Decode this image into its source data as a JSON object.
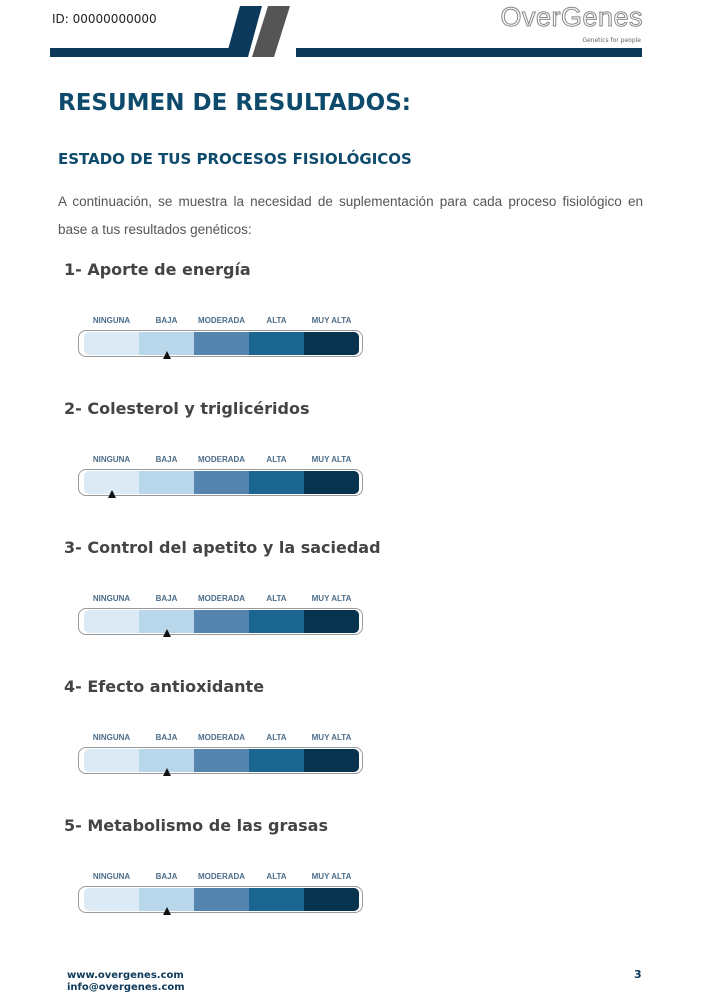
{
  "header": {
    "id": "ID: 00000000000",
    "logo": "OverGenes",
    "tagline": "Genetics for people"
  },
  "title": "RESUMEN DE RESULTADOS:",
  "subtitle": "ESTADO DE TUS PROCESOS FISIOLÓGICOS",
  "intro": "A continuación, se muestra la necesidad de suplementación para cada proceso fisiológico en base a tus resultados genéticos:",
  "scale": [
    "NINGUNA",
    "BAJA",
    "MODERADA",
    "ALTA",
    "MUY ALTA"
  ],
  "sections": [
    {
      "title": "1- Aporte de energía",
      "level": "BAJA"
    },
    {
      "title": "2- Colesterol y triglicéridos",
      "level": "NINGUNA"
    },
    {
      "title": "3- Control del apetito y la saciedad",
      "level": "BAJA"
    },
    {
      "title": "4- Efecto antioxidante",
      "level": "BAJA"
    },
    {
      "title": "5- Metabolismo de las grasas",
      "level": "BAJA"
    }
  ],
  "footer": {
    "web": "www.overgenes.com",
    "email": "info@overgenes.com",
    "page": "3"
  }
}
